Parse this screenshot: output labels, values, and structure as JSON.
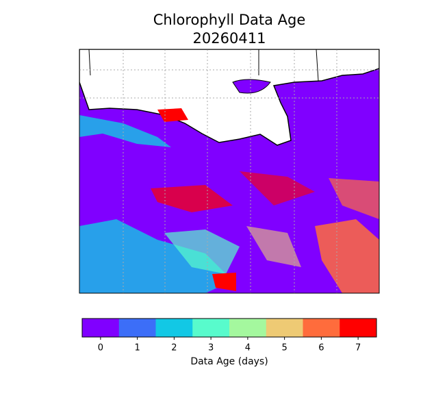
{
  "title": "Chlorophyll Data Age",
  "subtitle": "20260411",
  "colorbar": {
    "label": "Data Age (days)",
    "ticks": [
      0,
      1,
      2,
      3,
      4,
      5,
      6,
      7
    ],
    "colors": [
      "#8000ff",
      "#3c6ef8",
      "#12c8e5",
      "#58fbcc",
      "#a4f89e",
      "#eeca74",
      "#ff6c3c",
      "#ff0000"
    ]
  }
}
